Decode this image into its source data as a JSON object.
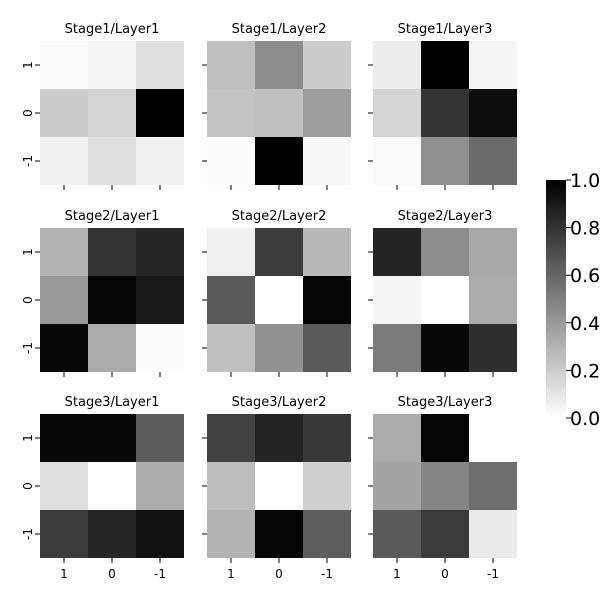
{
  "chart_data": {
    "type": "heatmap",
    "colormap": "gray_r",
    "vmin": 0.0,
    "vmax": 1.0,
    "row_labels": [
      "1",
      "0",
      "-1"
    ],
    "col_labels": [
      "1",
      "0",
      "-1"
    ],
    "colorbar_ticks": [
      "0.0",
      "0.2",
      "0.4",
      "0.6",
      "0.8",
      "1.0"
    ],
    "panels": [
      {
        "title": "Stage1/Layer1",
        "values": [
          [
            0.02,
            0.04,
            0.12
          ],
          [
            0.2,
            0.17,
            1.0
          ],
          [
            0.06,
            0.13,
            0.06
          ]
        ]
      },
      {
        "title": "Stage1/Layer2",
        "values": [
          [
            0.25,
            0.45,
            0.2
          ],
          [
            0.24,
            0.25,
            0.38
          ],
          [
            0.01,
            1.0,
            0.03
          ]
        ]
      },
      {
        "title": "Stage1/Layer3",
        "values": [
          [
            0.07,
            1.0,
            0.04
          ],
          [
            0.17,
            0.8,
            0.95
          ],
          [
            0.02,
            0.44,
            0.58
          ]
        ]
      },
      {
        "title": "Stage2/Layer1",
        "values": [
          [
            0.3,
            0.8,
            0.85
          ],
          [
            0.4,
            0.98,
            0.9
          ],
          [
            0.97,
            0.33,
            0.01
          ]
        ]
      },
      {
        "title": "Stage2/Layer2",
        "values": [
          [
            0.06,
            0.77,
            0.28
          ],
          [
            0.65,
            0.0,
            0.98
          ],
          [
            0.25,
            0.43,
            0.65
          ]
        ]
      },
      {
        "title": "Stage2/Layer3",
        "values": [
          [
            0.86,
            0.45,
            0.34
          ],
          [
            0.04,
            0.0,
            0.33
          ],
          [
            0.52,
            0.97,
            0.82
          ]
        ]
      },
      {
        "title": "Stage3/Layer1",
        "values": [
          [
            0.97,
            0.97,
            0.64
          ],
          [
            0.13,
            0.0,
            0.33
          ],
          [
            0.77,
            0.85,
            0.93
          ]
        ]
      },
      {
        "title": "Stage3/Layer2",
        "values": [
          [
            0.74,
            0.86,
            0.78
          ],
          [
            0.26,
            0.0,
            0.19
          ],
          [
            0.3,
            0.98,
            0.63
          ]
        ]
      },
      {
        "title": "Stage3/Layer3",
        "values": [
          [
            0.33,
            0.98,
            0.0
          ],
          [
            0.36,
            0.48,
            0.57
          ],
          [
            0.65,
            0.77,
            0.08
          ]
        ]
      }
    ]
  }
}
